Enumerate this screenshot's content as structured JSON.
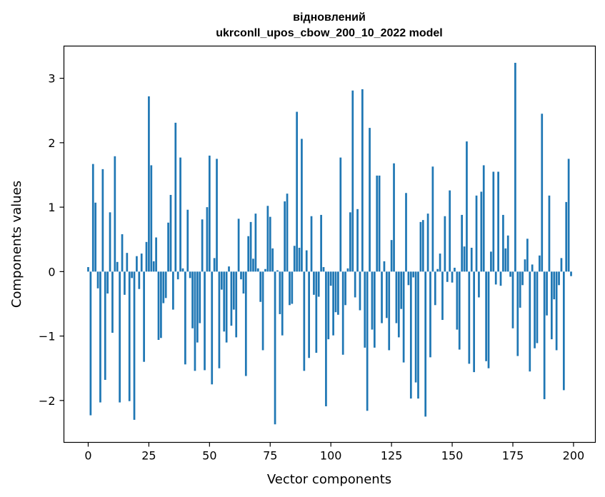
{
  "chart_data": {
    "type": "bar",
    "title_line1": "відновлений",
    "title_line2": "ukrconll_upos_cbow_200_10_2022 model",
    "xlabel": "Vector components",
    "ylabel": "Components values",
    "xlim": [
      -10,
      209
    ],
    "ylim": [
      -2.65,
      3.5
    ],
    "xticks": [
      0,
      25,
      50,
      75,
      100,
      125,
      150,
      175,
      200
    ],
    "xtick_labels": [
      "0",
      "25",
      "50",
      "75",
      "100",
      "125",
      "150",
      "175",
      "200"
    ],
    "yticks": [
      -2,
      -1,
      0,
      1,
      2,
      3
    ],
    "ytick_labels": [
      "−2",
      "−1",
      "0",
      "1",
      "2",
      "3"
    ],
    "bar_color": "#1f77b4",
    "grid": false,
    "x": [
      0,
      1,
      2,
      3,
      4,
      5,
      6,
      7,
      8,
      9,
      10,
      11,
      12,
      13,
      14,
      15,
      16,
      17,
      18,
      19,
      20,
      21,
      22,
      23,
      24,
      25,
      26,
      27,
      28,
      29,
      30,
      31,
      32,
      33,
      34,
      35,
      36,
      37,
      38,
      39,
      40,
      41,
      42,
      43,
      44,
      45,
      46,
      47,
      48,
      49,
      50,
      51,
      52,
      53,
      54,
      55,
      56,
      57,
      58,
      59,
      60,
      61,
      62,
      63,
      64,
      65,
      66,
      67,
      68,
      69,
      70,
      71,
      72,
      73,
      74,
      75,
      76,
      77,
      78,
      79,
      80,
      81,
      82,
      83,
      84,
      85,
      86,
      87,
      88,
      89,
      90,
      91,
      92,
      93,
      94,
      95,
      96,
      97,
      98,
      99,
      100,
      101,
      102,
      103,
      104,
      105,
      106,
      107,
      108,
      109,
      110,
      111,
      112,
      113,
      114,
      115,
      116,
      117,
      118,
      119,
      120,
      121,
      122,
      123,
      124,
      125,
      126,
      127,
      128,
      129,
      130,
      131,
      132,
      133,
      134,
      135,
      136,
      137,
      138,
      139,
      140,
      141,
      142,
      143,
      144,
      145,
      146,
      147,
      148,
      149,
      150,
      151,
      152,
      153,
      154,
      155,
      156,
      157,
      158,
      159,
      160,
      161,
      162,
      163,
      164,
      165,
      166,
      167,
      168,
      169,
      170,
      171,
      172,
      173,
      174,
      175,
      176,
      177,
      178,
      179,
      180,
      181,
      182,
      183,
      184,
      185,
      186,
      187,
      188,
      189,
      190,
      191,
      192,
      193,
      194,
      195,
      196,
      197,
      198,
      199
    ],
    "values": [
      0.07,
      -2.23,
      1.67,
      1.07,
      -0.26,
      -2.03,
      1.59,
      -1.68,
      -0.34,
      0.92,
      -0.95,
      1.79,
      0.15,
      -2.03,
      0.58,
      -0.36,
      0.29,
      -2.01,
      -0.1,
      -2.3,
      0.24,
      -0.27,
      0.28,
      -1.4,
      0.46,
      2.72,
      1.65,
      0.16,
      0.53,
      -1.06,
      -1.03,
      -0.49,
      -0.41,
      0.76,
      1.19,
      -0.59,
      2.31,
      -0.12,
      1.77,
      0.05,
      -1.44,
      0.96,
      -0.1,
      -0.88,
      -1.54,
      -1.1,
      -0.8,
      0.81,
      -1.53,
      1.0,
      1.8,
      -1.75,
      0.21,
      1.75,
      -1.5,
      -0.28,
      -0.93,
      -1.1,
      0.08,
      -0.84,
      -0.59,
      -1.02,
      0.82,
      -0.12,
      -0.34,
      -1.62,
      0.55,
      0.77,
      0.2,
      0.9,
      0.05,
      -0.47,
      -1.22,
      0.04,
      1.02,
      0.85,
      0.36,
      -2.37,
      0.02,
      -0.66,
      -0.99,
      1.09,
      1.21,
      -0.52,
      -0.5,
      0.4,
      2.48,
      0.37,
      2.06,
      -1.54,
      0.33,
      -1.34,
      0.86,
      -0.36,
      -1.26,
      -0.39,
      0.88,
      0.07,
      -2.09,
      -1.05,
      -0.22,
      -0.99,
      -0.63,
      -0.67,
      1.77,
      -1.29,
      -0.52,
      0.05,
      0.92,
      2.81,
      -0.4,
      0.97,
      -0.6,
      2.83,
      -1.18,
      -2.16,
      2.23,
      -0.9,
      -1.18,
      1.49,
      1.49,
      -0.8,
      0.16,
      -0.72,
      -1.22,
      0.49,
      1.68,
      -0.8,
      -1.02,
      -0.58,
      -1.41,
      1.22,
      -0.21,
      -1.97,
      -0.09,
      -1.72,
      -1.97,
      0.77,
      0.8,
      -2.25,
      0.9,
      -1.33,
      1.63,
      -0.52,
      0.04,
      0.28,
      -0.75,
      0.86,
      -0.16,
      1.26,
      -0.17,
      0.06,
      -0.9,
      -1.21,
      0.88,
      0.39,
      2.02,
      -1.43,
      0.37,
      -1.56,
      1.18,
      -0.4,
      1.24,
      1.65,
      -1.39,
      -1.5,
      0.31,
      1.55,
      -0.2,
      1.55,
      -0.22,
      0.88,
      0.36,
      0.56,
      -0.08,
      -0.88,
      3.24,
      -1.31,
      -0.56,
      -0.21,
      0.19,
      0.51,
      -1.55,
      0.11,
      -1.19,
      -1.11,
      0.25,
      2.45,
      -1.98,
      -0.68,
      1.18,
      -1.05,
      -0.43,
      -1.22,
      -0.21,
      0.21,
      -1.84,
      1.08,
      1.75,
      -0.07
    ]
  }
}
